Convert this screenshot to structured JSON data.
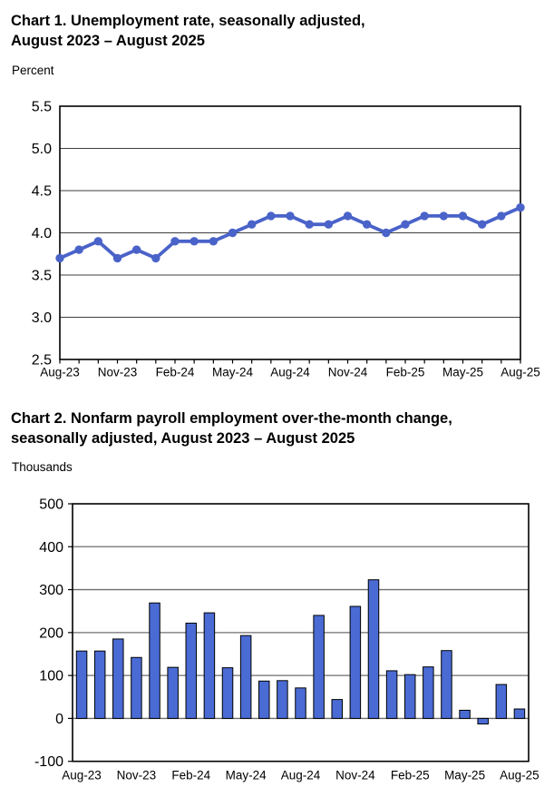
{
  "page": {
    "background": "#ffffff"
  },
  "chart_data": [
    {
      "type": "line",
      "title": "Chart 1. Unemployment rate, seasonally adjusted,\nAugust 2023 – August 2025",
      "ylabel": "Percent",
      "x": [
        "Aug-23",
        "Sep-23",
        "Oct-23",
        "Nov-23",
        "Dec-23",
        "Jan-24",
        "Feb-24",
        "Mar-24",
        "Apr-24",
        "May-24",
        "Jun-24",
        "Jul-24",
        "Aug-24",
        "Sep-24",
        "Oct-24",
        "Nov-24",
        "Dec-24",
        "Jan-25",
        "Feb-25",
        "Mar-25",
        "Apr-25",
        "May-25",
        "Jun-25",
        "Jul-25",
        "Aug-25"
      ],
      "values": [
        3.7,
        3.8,
        3.9,
        3.7,
        3.8,
        3.7,
        3.9,
        3.9,
        3.9,
        4.0,
        4.1,
        4.2,
        4.2,
        4.1,
        4.1,
        4.2,
        4.1,
        4.0,
        4.1,
        4.2,
        4.2,
        4.2,
        4.1,
        4.2,
        4.3
      ],
      "ylim": [
        2.5,
        5.5
      ],
      "yticks": [
        "2.5",
        "3.0",
        "3.5",
        "4.0",
        "4.5",
        "5.0",
        "5.5"
      ],
      "xticklabels": [
        "Aug-23",
        "Nov-23",
        "Feb-24",
        "May-24",
        "Aug-24",
        "Nov-24",
        "Feb-25",
        "May-25",
        "Aug-25"
      ],
      "xtick_every": 3,
      "grid": true,
      "legend": "none",
      "line_color": "#4a63c9",
      "grid_color": "#3f3f3f"
    },
    {
      "type": "bar",
      "title": "Chart 2. Nonfarm payroll employment over-the-month change,\nseasonally adjusted, August 2023 – August 2025",
      "ylabel": "Thousands",
      "categories": [
        "Aug-23",
        "Sep-23",
        "Oct-23",
        "Nov-23",
        "Dec-23",
        "Jan-24",
        "Feb-24",
        "Mar-24",
        "Apr-24",
        "May-24",
        "Jun-24",
        "Jul-24",
        "Aug-24",
        "Sep-24",
        "Oct-24",
        "Nov-24",
        "Dec-24",
        "Jan-25",
        "Feb-25",
        "Mar-25",
        "Apr-25",
        "May-25",
        "Jun-25",
        "Jul-25",
        "Aug-25"
      ],
      "values": [
        157,
        157,
        185,
        142,
        269,
        119,
        222,
        246,
        118,
        193,
        87,
        88,
        71,
        240,
        44,
        261,
        323,
        111,
        102,
        120,
        158,
        19,
        -13,
        79,
        22
      ],
      "ylim": [
        -100,
        500
      ],
      "yticks": [
        -100,
        0,
        100,
        200,
        300,
        400,
        500
      ],
      "xticklabels": [
        "Aug-23",
        "Nov-23",
        "Feb-24",
        "May-24",
        "Aug-24",
        "Nov-24",
        "Feb-25",
        "May-25",
        "Aug-25"
      ],
      "xtick_every": 3,
      "grid": true,
      "legend": "none",
      "bar_color": "#4a6bd4",
      "bar_border": "#000000",
      "grid_color": "#6e6e6e"
    }
  ]
}
